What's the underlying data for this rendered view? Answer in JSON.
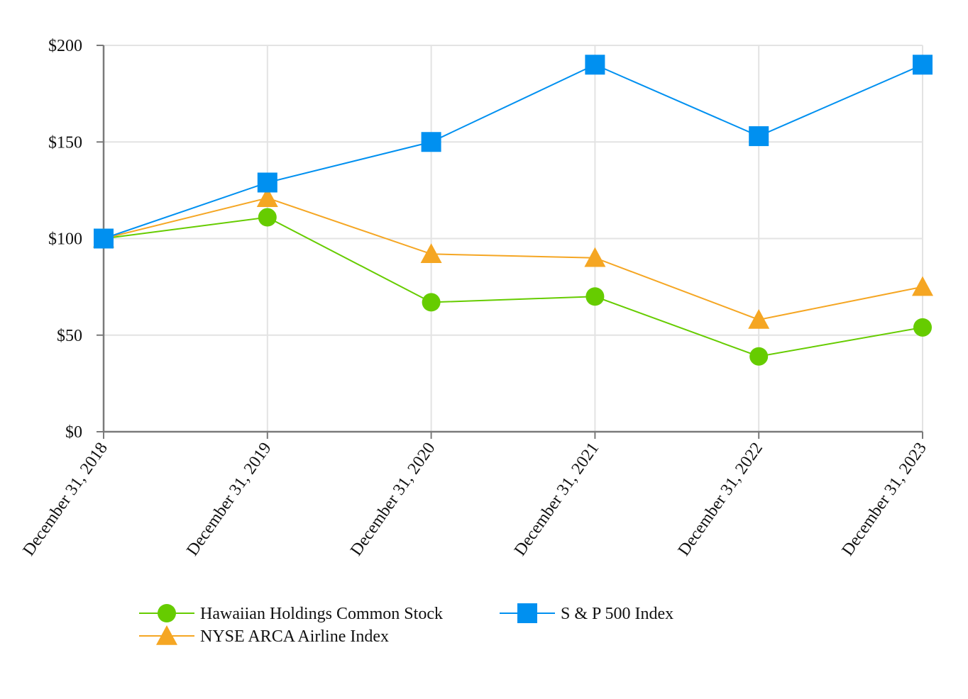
{
  "chart_data": {
    "type": "line",
    "title": "",
    "xlabel": "",
    "ylabel": "",
    "categories": [
      "December 31, 2018",
      "December 31, 2019",
      "December 31, 2020",
      "December 31, 2021",
      "December 31, 2022",
      "December 31, 2023"
    ],
    "ylim": [
      0,
      200
    ],
    "yticks": [
      0,
      50,
      100,
      150,
      200
    ],
    "ytick_labels": [
      "$0",
      "$50",
      "$100",
      "$150",
      "$200"
    ],
    "grid": true,
    "legend_position": "bottom",
    "series": [
      {
        "name": "Hawaiian Holdings Common Stock",
        "color": "#66cc00",
        "marker": "circle",
        "values": [
          100,
          111,
          67,
          70,
          39,
          54
        ]
      },
      {
        "name": "S & P 500 Index",
        "color": "#0090f0",
        "marker": "square",
        "values": [
          100,
          129,
          150,
          190,
          153,
          190
        ]
      },
      {
        "name": "NYSE ARCA Airline Index",
        "color": "#f5a623",
        "marker": "triangle",
        "values": [
          100,
          121,
          92,
          90,
          58,
          75
        ]
      }
    ]
  }
}
